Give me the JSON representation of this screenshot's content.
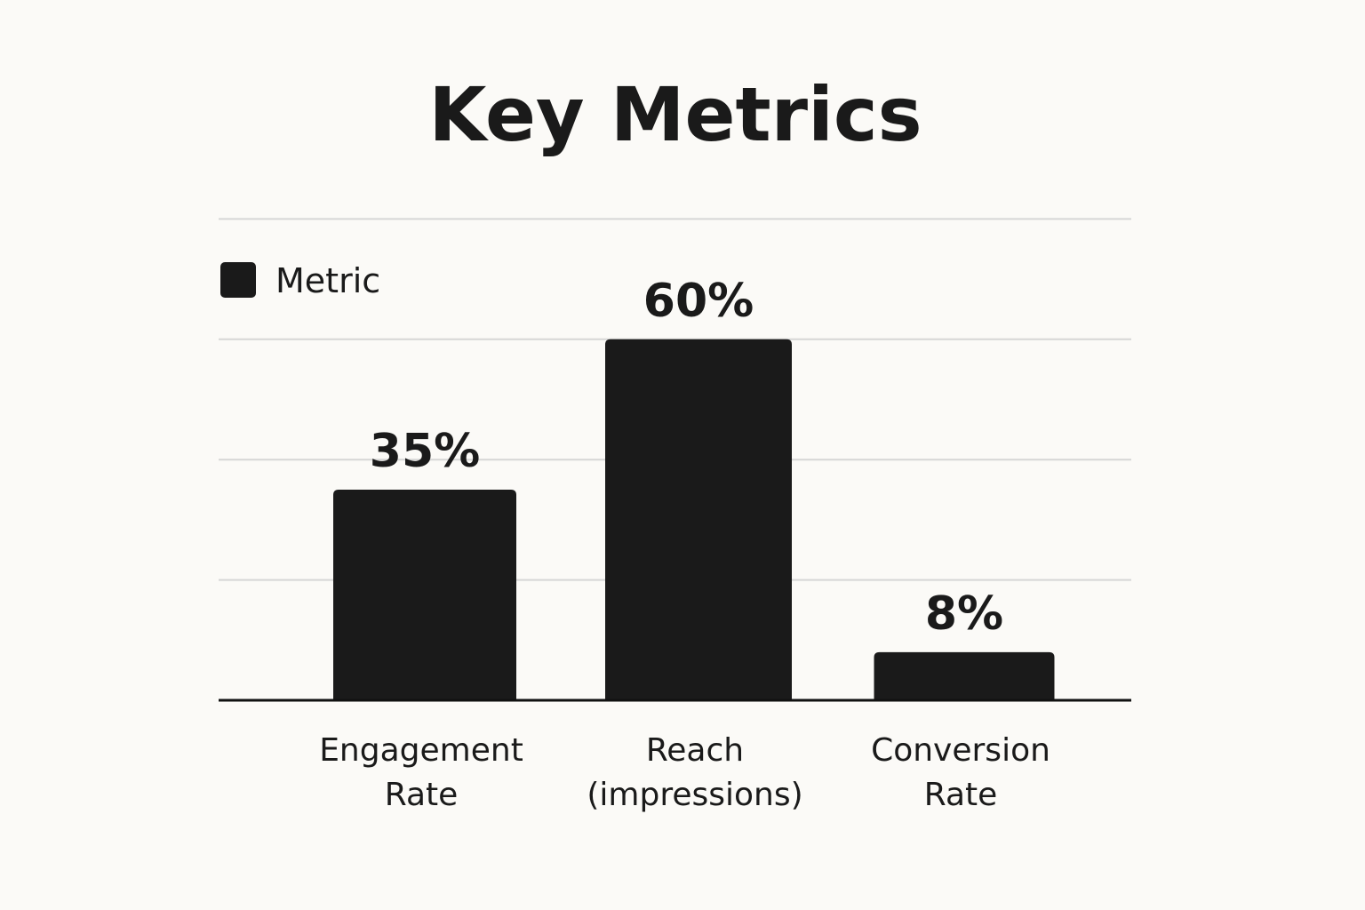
{
  "chart_data": {
    "type": "bar",
    "title": "Key Metrics",
    "categories": [
      [
        "Engagement",
        "Rate"
      ],
      [
        "Reach",
        "(impressions)"
      ],
      [
        "Conversion",
        "Rate"
      ]
    ],
    "series": [
      {
        "name": "Metric",
        "values": [
          35,
          60,
          8
        ],
        "labels": [
          "35%",
          "60%",
          "8%"
        ],
        "color": "#1a1a1a"
      }
    ],
    "ylim": [
      0,
      80
    ],
    "grid": true,
    "legend": "top-left",
    "xlabel": "",
    "ylabel": ""
  }
}
